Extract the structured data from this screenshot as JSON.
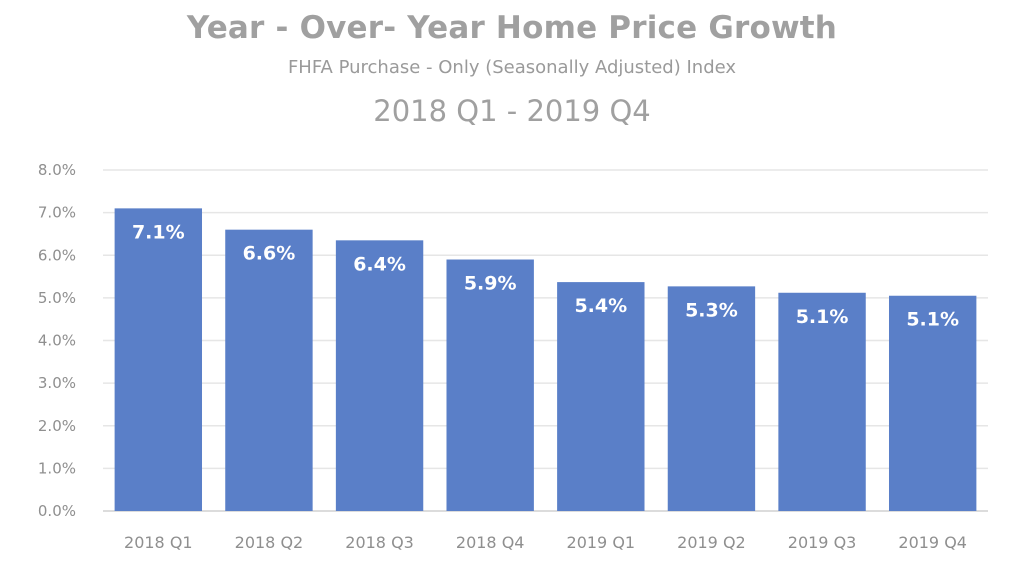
{
  "chart_data": {
    "type": "bar",
    "title": "Year - Over- Year Home Price Growth",
    "subtitle": "FHFA Purchase - Only (Seasonally Adjusted) Index",
    "period": "2018 Q1 - 2019 Q4",
    "categories": [
      "2018 Q1",
      "2018 Q2",
      "2018 Q3",
      "2018 Q4",
      "2019 Q1",
      "2019 Q2",
      "2019 Q3",
      "2019 Q4"
    ],
    "values": [
      7.1,
      6.6,
      6.35,
      5.9,
      5.37,
      5.27,
      5.12,
      5.05
    ],
    "data_labels": [
      "7.1%",
      "6.6%",
      "6.4%",
      "5.9%",
      "5.4%",
      "5.3%",
      "5.1%",
      "5.1%"
    ],
    "y_ticks": [
      "0.0%",
      "1.0%",
      "2.0%",
      "3.0%",
      "4.0%",
      "5.0%",
      "6.0%",
      "7.0%",
      "8.0%"
    ],
    "ylim": [
      0,
      8
    ],
    "xlabel": "",
    "ylabel": "",
    "grid": true,
    "legend": "none",
    "bar_color": "#5a7fc8",
    "gridline_color": "#e6e6e6",
    "text_color": "#a0a0a0"
  }
}
